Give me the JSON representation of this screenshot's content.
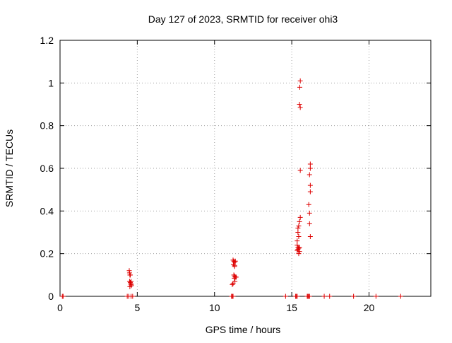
{
  "chart_data": {
    "type": "scatter",
    "title": "Day 127 of 2023, SRMTID for receiver ohi3",
    "xlabel": "GPS time / hours",
    "ylabel": "SRMTID / TECUs",
    "xlim": [
      0,
      24
    ],
    "ylim": [
      0,
      1.2
    ],
    "xticks": [
      0,
      5,
      10,
      15,
      20
    ],
    "xtick_labels": [
      "0",
      "5",
      "10",
      "15",
      "20"
    ],
    "yticks": [
      0,
      0.2,
      0.4,
      0.6,
      0.8,
      1.0,
      1.2
    ],
    "ytick_labels": [
      "0",
      "0.2",
      "0.4",
      "0.6",
      "0.8",
      "1",
      "1.2"
    ],
    "grid": true,
    "legend": "none",
    "marker": "plus",
    "marker_color": "#dd0000",
    "series": [
      {
        "name": "SRMTID",
        "points": [
          [
            0.15,
            0.0
          ],
          [
            0.2,
            0.0
          ],
          [
            4.35,
            0.0
          ],
          [
            4.45,
            0.0
          ],
          [
            4.6,
            0.0
          ],
          [
            4.7,
            0.0
          ],
          [
            4.48,
            0.12
          ],
          [
            4.5,
            0.11
          ],
          [
            4.52,
            0.1
          ],
          [
            4.55,
            0.1
          ],
          [
            4.5,
            0.07
          ],
          [
            4.55,
            0.065
          ],
          [
            4.58,
            0.06
          ],
          [
            4.6,
            0.055
          ],
          [
            4.62,
            0.05
          ],
          [
            4.52,
            0.045
          ],
          [
            4.6,
            0.07
          ],
          [
            11.1,
            0.0
          ],
          [
            11.15,
            0.0
          ],
          [
            11.2,
            0.0
          ],
          [
            11.2,
            0.17
          ],
          [
            11.25,
            0.165
          ],
          [
            11.3,
            0.16
          ],
          [
            11.35,
            0.165
          ],
          [
            11.22,
            0.15
          ],
          [
            11.3,
            0.145
          ],
          [
            11.3,
            0.14
          ],
          [
            11.25,
            0.1
          ],
          [
            11.3,
            0.095
          ],
          [
            11.35,
            0.09
          ],
          [
            11.4,
            0.09
          ],
          [
            11.28,
            0.085
          ],
          [
            11.32,
            0.07
          ],
          [
            11.2,
            0.06
          ],
          [
            11.15,
            0.055
          ],
          [
            14.6,
            0.0
          ],
          [
            15.25,
            0.0
          ],
          [
            15.3,
            0.0
          ],
          [
            15.35,
            0.0
          ],
          [
            15.45,
            0.33
          ],
          [
            15.5,
            0.35
          ],
          [
            15.55,
            0.37
          ],
          [
            15.4,
            0.32
          ],
          [
            15.4,
            0.3
          ],
          [
            15.45,
            0.28
          ],
          [
            15.35,
            0.26
          ],
          [
            15.35,
            0.24
          ],
          [
            15.4,
            0.23
          ],
          [
            15.45,
            0.225
          ],
          [
            15.4,
            0.22
          ],
          [
            15.35,
            0.215
          ],
          [
            15.5,
            0.23
          ],
          [
            15.5,
            0.21
          ],
          [
            15.45,
            0.2
          ],
          [
            15.55,
            1.01
          ],
          [
            15.52,
            0.98
          ],
          [
            15.5,
            0.9
          ],
          [
            15.55,
            0.885
          ],
          [
            15.55,
            0.59
          ],
          [
            16.0,
            0.0
          ],
          [
            16.05,
            0.0
          ],
          [
            16.1,
            0.0
          ],
          [
            16.15,
            0.0
          ],
          [
            16.2,
            0.62
          ],
          [
            16.2,
            0.6
          ],
          [
            16.15,
            0.57
          ],
          [
            16.2,
            0.52
          ],
          [
            16.2,
            0.49
          ],
          [
            16.1,
            0.43
          ],
          [
            16.15,
            0.39
          ],
          [
            16.15,
            0.34
          ],
          [
            16.2,
            0.28
          ],
          [
            17.1,
            0.0
          ],
          [
            17.45,
            0.0
          ],
          [
            19.0,
            0.0
          ],
          [
            20.45,
            0.0
          ],
          [
            22.05,
            0.0
          ]
        ]
      }
    ]
  }
}
